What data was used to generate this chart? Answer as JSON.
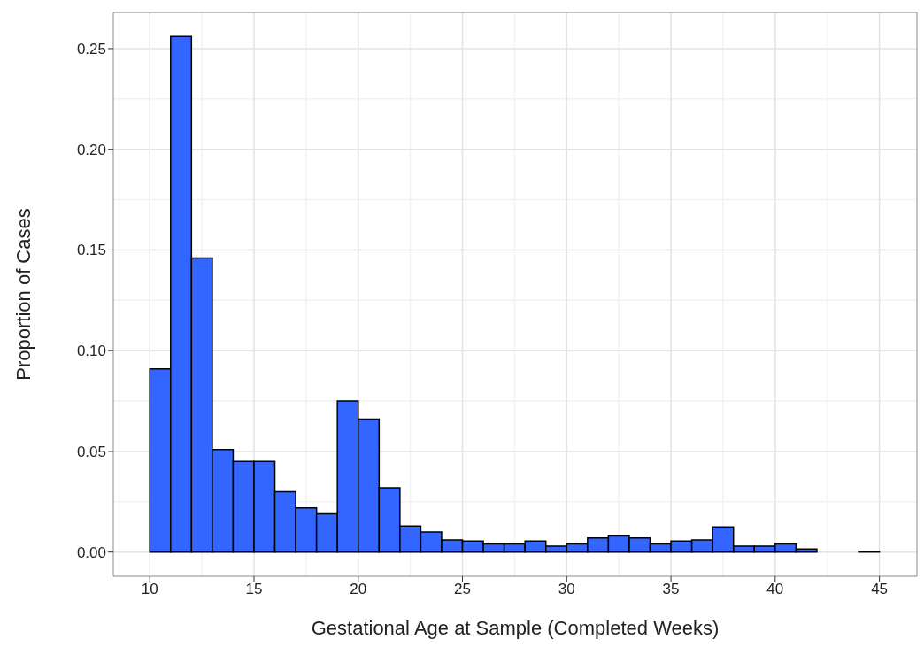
{
  "chart_data": {
    "type": "histogram",
    "xlabel": "Gestational Age at Sample (Completed Weeks)",
    "ylabel": "Proportion of Cases",
    "bins": [
      10,
      11,
      12,
      13,
      14,
      15,
      16,
      17,
      18,
      19,
      20,
      21,
      22,
      23,
      24,
      25,
      26,
      27,
      28,
      29,
      30,
      31,
      32,
      33,
      34,
      35,
      36,
      37,
      38,
      39,
      40,
      41,
      42,
      43,
      44,
      45
    ],
    "values": [
      0.091,
      0.256,
      0.146,
      0.051,
      0.045,
      0.045,
      0.03,
      0.022,
      0.019,
      0.075,
      0.066,
      0.032,
      0.013,
      0.01,
      0.006,
      0.0055,
      0.004,
      0.004,
      0.0055,
      0.003,
      0.004,
      0.007,
      0.008,
      0.007,
      0.004,
      0.0055,
      0.006,
      0.0125,
      0.003,
      0.003,
      0.004,
      0.0015,
      0,
      0,
      0.0004
    ],
    "color": "#3366ff",
    "xlim": [
      8.25,
      46.8
    ],
    "xticks": [
      10,
      15,
      20,
      25,
      30,
      35,
      40,
      45
    ],
    "ylim": [
      -0.012,
      0.268
    ],
    "yticks": [
      {
        "value": 0,
        "label": "0.00"
      },
      {
        "value": 0.05,
        "label": "0.05"
      },
      {
        "value": 0.1,
        "label": "0.10"
      },
      {
        "value": 0.15,
        "label": "0.15"
      },
      {
        "value": 0.2,
        "label": "0.20"
      },
      {
        "value": 0.25,
        "label": "0.25"
      }
    ],
    "grid": true
  }
}
